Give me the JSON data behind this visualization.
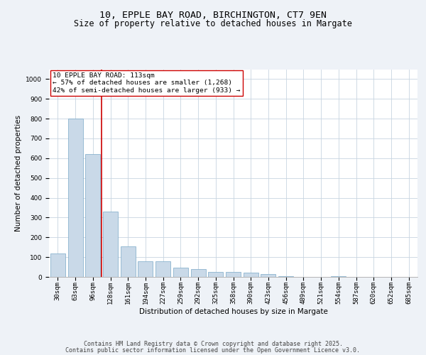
{
  "title": "10, EPPLE BAY ROAD, BIRCHINGTON, CT7 9EN",
  "subtitle": "Size of property relative to detached houses in Margate",
  "xlabel": "Distribution of detached houses by size in Margate",
  "ylabel": "Number of detached properties",
  "categories": [
    "30sqm",
    "63sqm",
    "96sqm",
    "128sqm",
    "161sqm",
    "194sqm",
    "227sqm",
    "259sqm",
    "292sqm",
    "325sqm",
    "358sqm",
    "390sqm",
    "423sqm",
    "456sqm",
    "489sqm",
    "521sqm",
    "554sqm",
    "587sqm",
    "620sqm",
    "652sqm",
    "685sqm"
  ],
  "values": [
    120,
    800,
    620,
    330,
    155,
    80,
    80,
    45,
    40,
    25,
    25,
    20,
    15,
    5,
    0,
    0,
    5,
    0,
    0,
    0,
    0
  ],
  "bar_color": "#c9d9e8",
  "bar_edge_color": "#7aa8c7",
  "vline_x": 2.5,
  "vline_color": "#cc0000",
  "annotation_line1": "10 EPPLE BAY ROAD: 113sqm",
  "annotation_line2": "← 57% of detached houses are smaller (1,268)",
  "annotation_line3": "42% of semi-detached houses are larger (933) →",
  "ylim": [
    0,
    1050
  ],
  "yticks": [
    0,
    100,
    200,
    300,
    400,
    500,
    600,
    700,
    800,
    900,
    1000
  ],
  "bg_color": "#eef2f7",
  "plot_bg_color": "#ffffff",
  "grid_color": "#c8d4e0",
  "footer_line1": "Contains HM Land Registry data © Crown copyright and database right 2025.",
  "footer_line2": "Contains public sector information licensed under the Open Government Licence v3.0.",
  "title_fontsize": 9.5,
  "subtitle_fontsize": 8.5,
  "axis_label_fontsize": 7.5,
  "tick_fontsize": 6.5,
  "annotation_fontsize": 6.8,
  "footer_fontsize": 6.0
}
